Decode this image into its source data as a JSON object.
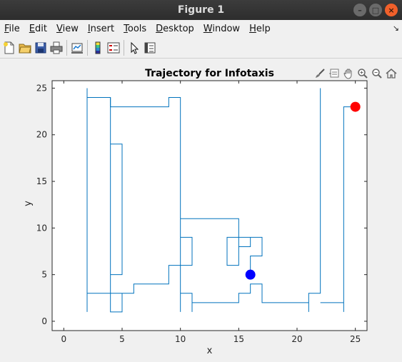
{
  "window": {
    "title": "Figure 1",
    "controls": {
      "minimize": "–",
      "maximize": "□",
      "close": "×"
    }
  },
  "menu": {
    "file": {
      "ul": "F",
      "rest": "ile"
    },
    "edit": {
      "ul": "E",
      "rest": "dit"
    },
    "view": {
      "ul": "V",
      "rest": "iew"
    },
    "insert": {
      "ul": "I",
      "rest": "nsert"
    },
    "tools": {
      "ul": "T",
      "rest": "ools"
    },
    "desktop": {
      "ul": "D",
      "rest": "esktop"
    },
    "window": {
      "ul": "W",
      "rest": "indow"
    },
    "help": {
      "ul": "H",
      "rest": "elp"
    },
    "overflow_arrow": "↘"
  },
  "toolbar_icons": [
    "new-figure-icon",
    "open-folder-icon",
    "save-icon",
    "print-icon",
    "link-plot-icon",
    "colorbar-icon",
    "legend-icon",
    "pointer-icon",
    "property-inspector-icon"
  ],
  "axes_toolbar_icons": [
    "brush-icon",
    "data-tips-icon",
    "pan-icon",
    "zoom-in-icon",
    "zoom-out-icon",
    "home-icon"
  ],
  "chart_data": {
    "type": "line",
    "title": "Trajectory for Infotaxis",
    "xlabel": "x",
    "ylabel": "y",
    "xlim": [
      -1,
      26
    ],
    "ylim": [
      -1,
      25.8
    ],
    "xticks": [
      0,
      5,
      10,
      15,
      20,
      25
    ],
    "yticks": [
      0,
      5,
      10,
      15,
      20,
      25
    ],
    "grid": false,
    "series": [
      {
        "color": "#0072bd",
        "polylines": [
          [
            [
              2,
              25
            ],
            [
              2,
              24
            ],
            [
              4,
              24
            ],
            [
              4,
              23
            ],
            [
              9,
              23
            ],
            [
              9,
              24
            ],
            [
              10,
              24
            ],
            [
              10,
              9
            ],
            [
              11,
              9
            ],
            [
              11,
              6
            ],
            [
              10,
              6
            ],
            [
              10,
              11
            ],
            [
              15,
              11
            ],
            [
              15,
              8
            ],
            [
              16,
              8
            ],
            [
              16,
              9
            ],
            [
              14,
              9
            ],
            [
              14,
              6
            ],
            [
              15,
              6
            ],
            [
              15,
              9
            ],
            [
              17,
              9
            ],
            [
              17,
              7
            ],
            [
              16,
              7
            ],
            [
              16,
              5
            ]
          ],
          [
            [
              2,
              1
            ],
            [
              2,
              24
            ]
          ],
          [
            [
              2,
              3
            ],
            [
              6,
              3
            ],
            [
              6,
              4
            ],
            [
              7,
              4
            ],
            [
              7,
              4
            ],
            [
              9,
              4
            ],
            [
              9,
              6
            ],
            [
              10,
              6
            ],
            [
              10,
              1
            ]
          ],
          [
            [
              4,
              24
            ],
            [
              4,
              1
            ],
            [
              5,
              1
            ],
            [
              5,
              3
            ]
          ],
          [
            [
              4,
              19
            ],
            [
              5,
              19
            ],
            [
              5,
              5
            ],
            [
              4,
              5
            ]
          ],
          [
            [
              10,
              3
            ],
            [
              11,
              3
            ],
            [
              11,
              1
            ],
            [
              11,
              2
            ],
            [
              15,
              2
            ],
            [
              15,
              3
            ],
            [
              16,
              3
            ],
            [
              16,
              4
            ],
            [
              17,
              4
            ],
            [
              17,
              2
            ],
            [
              21,
              2
            ],
            [
              21,
              1
            ],
            [
              21,
              3
            ],
            [
              22,
              3
            ],
            [
              22,
              25
            ]
          ],
          [
            [
              22,
              2
            ],
            [
              24,
              2
            ],
            [
              24,
              1
            ],
            [
              24,
              23
            ],
            [
              25,
              23
            ]
          ]
        ]
      }
    ],
    "markers": [
      {
        "x": 16,
        "y": 5,
        "color": "#0000ff"
      },
      {
        "x": 25,
        "y": 23,
        "color": "#ff0000"
      }
    ]
  }
}
